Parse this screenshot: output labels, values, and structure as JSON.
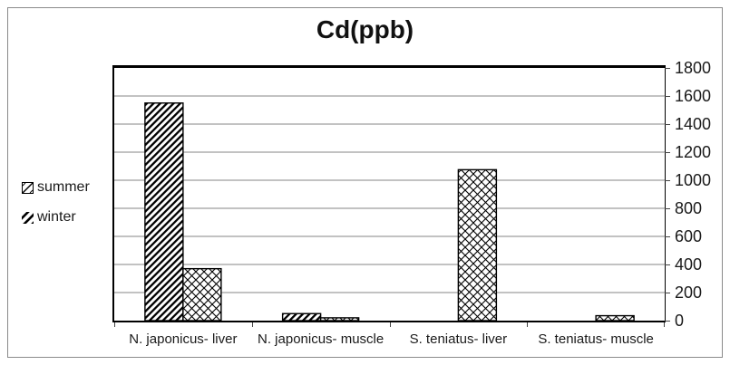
{
  "window": {
    "background": "#ffffff",
    "frame_border_color": "#8a8a8a"
  },
  "chart_data": {
    "type": "bar",
    "title": "Cd(ppb)",
    "categories": [
      "N. japonicus- liver",
      "N. japonicus- muscle",
      "S. teniatus- liver",
      "S. teniatus- muscle"
    ],
    "series": [
      {
        "name": "summer",
        "pattern": "diagonal-stripes",
        "values": [
          1550,
          50,
          0,
          0
        ]
      },
      {
        "name": "winter",
        "pattern": "diamond-lattice",
        "values": [
          370,
          20,
          1075,
          35
        ]
      }
    ],
    "xlabel": "",
    "ylabel": "",
    "ylim": [
      0,
      1800
    ],
    "ytick_step": 200,
    "yticks": [
      "1800",
      "1600",
      "1400",
      "1200",
      "1000",
      "800",
      "600",
      "400",
      "200",
      "0"
    ],
    "grid": true,
    "gridline_color": "#9e9e9e",
    "bar_outline_color": "#000000",
    "bar_fill_color": "#ffffff",
    "legend_position": "left",
    "legend_items": [
      "summer",
      "winter"
    ]
  }
}
